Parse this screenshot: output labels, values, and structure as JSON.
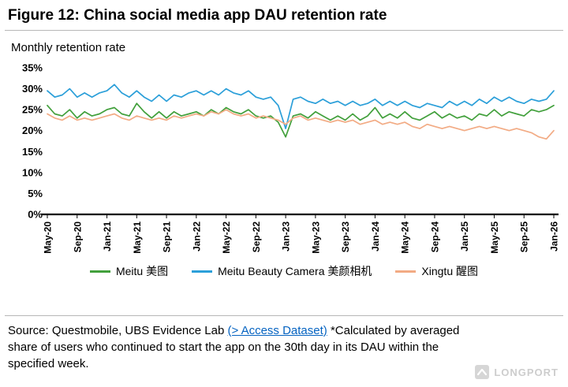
{
  "figure": {
    "title": "Figure 12: China social media app DAU retention rate"
  },
  "chart_data": {
    "type": "line",
    "title": "Monthly retention rate",
    "ylim": [
      0,
      35
    ],
    "y_ticks": [
      "0%",
      "5%",
      "10%",
      "15%",
      "20%",
      "25%",
      "30%",
      "35%"
    ],
    "x_tick_every": 4,
    "x_tick_labels": [
      "May-20",
      "Sep-20",
      "Jan-21",
      "May-21",
      "Sep-21",
      "Jan-22",
      "May-22",
      "Sep-22",
      "Jan-23",
      "May-23",
      "Sep-23",
      "Jan-24",
      "May-24",
      "Sep-24",
      "Jan-25",
      "May-25",
      "Sep-25",
      "Jan-26"
    ],
    "x_months": [
      "May-20",
      "Jun-20",
      "Jul-20",
      "Aug-20",
      "Sep-20",
      "Oct-20",
      "Nov-20",
      "Dec-20",
      "Jan-21",
      "Feb-21",
      "Mar-21",
      "Apr-21",
      "May-21",
      "Jun-21",
      "Jul-21",
      "Aug-21",
      "Sep-21",
      "Oct-21",
      "Nov-21",
      "Dec-21",
      "Jan-22",
      "Feb-22",
      "Mar-22",
      "Apr-22",
      "May-22",
      "Jun-22",
      "Jul-22",
      "Aug-22",
      "Sep-22",
      "Oct-22",
      "Nov-22",
      "Dec-22",
      "Jan-23",
      "Feb-23",
      "Mar-23",
      "Apr-23",
      "May-23",
      "Jun-23",
      "Jul-23",
      "Aug-23",
      "Sep-23",
      "Oct-23",
      "Nov-23",
      "Dec-23",
      "Jan-24",
      "Feb-24",
      "Mar-24",
      "Apr-24",
      "May-24",
      "Jun-24",
      "Jul-24",
      "Aug-24",
      "Sep-24",
      "Oct-24",
      "Nov-24",
      "Dec-24",
      "Jan-25",
      "Feb-25",
      "Mar-25",
      "Apr-25",
      "May-25",
      "Jun-25",
      "Jul-25",
      "Aug-25",
      "Sep-25",
      "Oct-25",
      "Nov-25",
      "Dec-25",
      "Jan-26"
    ],
    "legend_position": "bottom",
    "series": [
      {
        "name": "Meitu 美图",
        "color": "#42a03c",
        "values": [
          26,
          24,
          23.5,
          25,
          23,
          24.5,
          23.5,
          24,
          25,
          25.5,
          24,
          23.5,
          26.5,
          24.5,
          23,
          24.5,
          23,
          24.5,
          23.5,
          24,
          24.5,
          23.5,
          25,
          24,
          25.5,
          24.5,
          24,
          25,
          23.5,
          23,
          23.5,
          22,
          18.5,
          23.5,
          24,
          23,
          24.5,
          23.5,
          22.5,
          23.5,
          22.5,
          24,
          22.5,
          23.5,
          25.5,
          23,
          24,
          23,
          24.5,
          23,
          22.5,
          23.5,
          24.5,
          23,
          24,
          23,
          23.5,
          22.5,
          24,
          23.5,
          25,
          23.5,
          24.5,
          24,
          23.5,
          25,
          24.5,
          25,
          26
        ]
      },
      {
        "name": "Meitu Beauty Camera 美颜相机",
        "color": "#2b9fd9",
        "values": [
          29.5,
          28,
          28.5,
          30,
          28,
          29,
          28,
          29,
          29.5,
          31,
          29,
          28,
          29.5,
          28,
          27,
          28.5,
          27,
          28.5,
          28,
          29,
          29.5,
          28.5,
          29.5,
          28.5,
          30,
          29,
          28.5,
          29.5,
          28,
          27.5,
          28,
          26,
          20.5,
          27.5,
          28,
          27,
          26.5,
          27.5,
          26.5,
          27,
          26,
          27,
          26,
          26.5,
          27.5,
          26,
          27,
          26,
          27,
          26,
          25.5,
          26.5,
          26,
          25.5,
          27,
          26,
          27,
          26,
          27.5,
          26.5,
          28,
          27,
          28,
          27,
          26.5,
          27.5,
          27,
          27.5,
          29.5
        ]
      },
      {
        "name": "Xingtu 醒图",
        "color": "#f2ab84",
        "values": [
          24,
          23,
          22.5,
          23.5,
          22.5,
          23,
          22.5,
          23,
          23.5,
          24,
          23,
          22.5,
          23.5,
          23,
          22.5,
          23,
          22.5,
          23.5,
          23,
          23.5,
          24,
          23.5,
          24.5,
          24,
          25,
          24,
          23.5,
          24,
          23,
          23.5,
          23,
          22.5,
          21.5,
          23,
          23.5,
          22.5,
          23,
          22.5,
          22,
          22.5,
          22,
          22.5,
          21.5,
          22,
          22.5,
          21.5,
          22,
          21.5,
          22,
          21,
          20.5,
          21.5,
          21,
          20.5,
          21,
          20.5,
          20,
          20.5,
          21,
          20.5,
          21,
          20.5,
          20,
          20.5,
          20,
          19.5,
          18.5,
          18,
          20
        ]
      }
    ]
  },
  "source": {
    "prefix": "Source: Questmobile, UBS Evidence Lab ",
    "link": "(> Access Dataset)",
    "suffix": " *Calculated by averaged\nshare of users who continued to start the app on the 30th day in its DAU within the\nspecified week."
  },
  "watermark": {
    "text": "LONGPORT"
  }
}
